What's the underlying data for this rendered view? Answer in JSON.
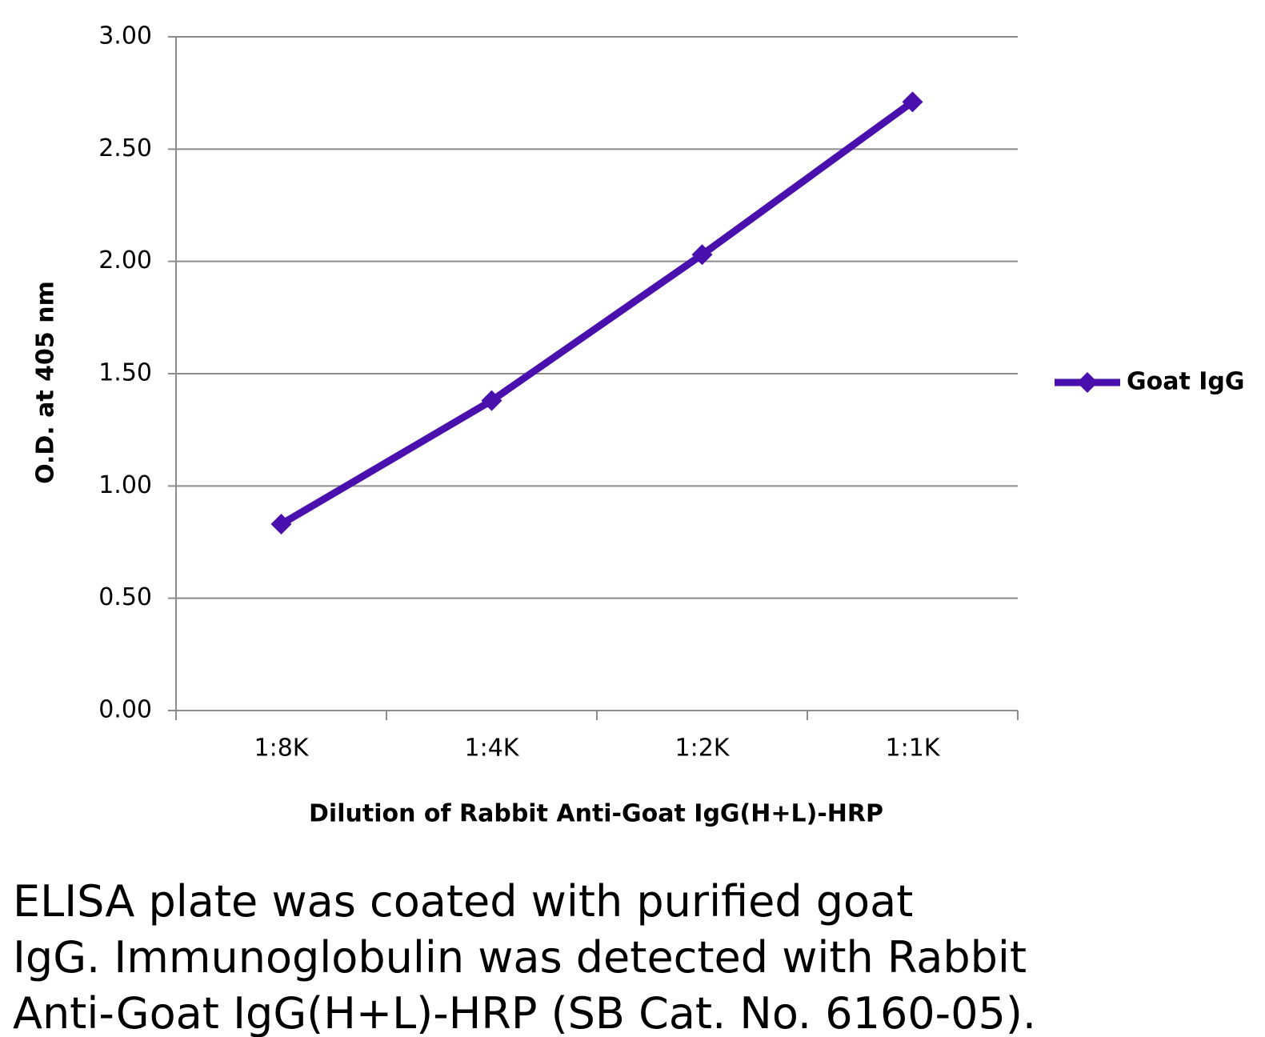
{
  "chart_data": {
    "type": "line",
    "x_label": "Dilution of Rabbit Anti-Goat IgG(H+L)-HRP",
    "y_label": "O.D. at 405 nm",
    "categories": [
      "1:8K",
      "1:4K",
      "1:2K",
      "1:1K"
    ],
    "series": [
      {
        "name": "Goat IgG",
        "color": "#4a10ad",
        "values": [
          0.83,
          1.38,
          2.03,
          2.71
        ]
      }
    ],
    "ylim": [
      0,
      3
    ],
    "yticks": [
      {
        "value": 0,
        "label": "0.00"
      },
      {
        "value": 0.5,
        "label": "0.50"
      },
      {
        "value": 1,
        "label": "1.00"
      },
      {
        "value": 1.5,
        "label": "1.50"
      },
      {
        "value": 2,
        "label": "2.00"
      },
      {
        "value": 2.5,
        "label": "2.50"
      },
      {
        "value": 3,
        "label": "3.00"
      }
    ],
    "grid": true,
    "legend": "right",
    "caption": [
      "ELISA plate was coated with purified goat",
      "IgG.  Immunoglobulin was detected with Rabbit",
      "Anti-Goat IgG(H+L)-HRP (SB Cat. No. 6160-05)."
    ]
  }
}
